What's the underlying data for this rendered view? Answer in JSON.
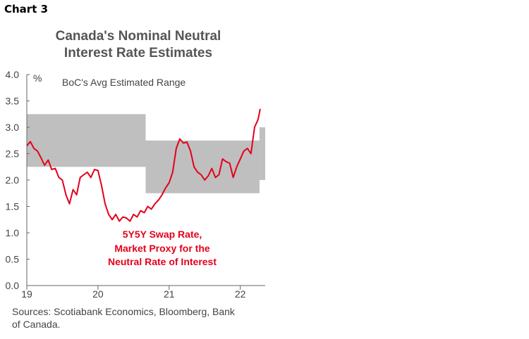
{
  "chart_label": "Chart 3",
  "chart_data": {
    "type": "line",
    "title": "Canada's Nominal Neutral Interest Rate Estimates",
    "title_lines": [
      "Canada's Nominal Neutral",
      "Interest Rate Estimates"
    ],
    "ylabel": "%",
    "xlabel": "",
    "ylim": [
      0,
      4
    ],
    "xlim": [
      19,
      22.35
    ],
    "y_ticks": [
      0.0,
      0.5,
      1.0,
      1.5,
      2.0,
      2.5,
      3.0,
      3.5,
      4.0
    ],
    "y_tick_labels": [
      "0.0",
      "0.5",
      "1.0",
      "1.5",
      "2.0",
      "2.5",
      "3.0",
      "3.5",
      "4.0"
    ],
    "x_ticks": [
      19,
      20,
      21,
      22
    ],
    "x_tick_labels": [
      "19",
      "20",
      "21",
      "22"
    ],
    "grid": false,
    "range_band": {
      "name": "BoC's Avg Estimated Range",
      "color": "#bfbfbf",
      "segments": [
        {
          "x_start": 19.0,
          "x_end": 20.67,
          "low": 2.25,
          "high": 3.25
        },
        {
          "x_start": 20.67,
          "x_end": 22.27,
          "low": 1.75,
          "high": 2.75
        },
        {
          "x_start": 22.27,
          "x_end": 22.35,
          "low": 2.0,
          "high": 3.0
        }
      ]
    },
    "series": [
      {
        "name": "5Y5Y Swap Rate, Market Proxy for the Neutral Rate of Interest",
        "color": "#e3001b",
        "x": [
          19.0,
          19.05,
          19.1,
          19.15,
          19.2,
          19.25,
          19.3,
          19.35,
          19.4,
          19.45,
          19.5,
          19.55,
          19.6,
          19.65,
          19.7,
          19.75,
          19.8,
          19.85,
          19.9,
          19.95,
          20.0,
          20.05,
          20.1,
          20.15,
          20.2,
          20.25,
          20.3,
          20.35,
          20.4,
          20.45,
          20.5,
          20.55,
          20.6,
          20.65,
          20.7,
          20.75,
          20.8,
          20.85,
          20.9,
          20.95,
          21.0,
          21.05,
          21.1,
          21.15,
          21.2,
          21.25,
          21.3,
          21.35,
          21.4,
          21.45,
          21.5,
          21.55,
          21.6,
          21.65,
          21.7,
          21.75,
          21.8,
          21.85,
          21.9,
          21.95,
          22.0,
          22.05,
          22.1,
          22.15,
          22.2,
          22.25,
          22.28
        ],
        "values": [
          2.65,
          2.73,
          2.6,
          2.55,
          2.42,
          2.28,
          2.38,
          2.2,
          2.22,
          2.05,
          2.0,
          1.72,
          1.55,
          1.82,
          1.72,
          2.05,
          2.1,
          2.15,
          2.05,
          2.2,
          2.18,
          1.9,
          1.55,
          1.35,
          1.25,
          1.35,
          1.22,
          1.3,
          1.28,
          1.22,
          1.35,
          1.3,
          1.42,
          1.38,
          1.5,
          1.45,
          1.55,
          1.62,
          1.72,
          1.85,
          1.95,
          2.15,
          2.6,
          2.78,
          2.7,
          2.72,
          2.55,
          2.25,
          2.15,
          2.1,
          2.0,
          2.08,
          2.22,
          2.05,
          2.1,
          2.4,
          2.35,
          2.32,
          2.05,
          2.25,
          2.4,
          2.55,
          2.6,
          2.5,
          3.0,
          3.15,
          3.35
        ]
      }
    ],
    "annotations": [
      {
        "text": "BoC's Avg Estimated Range",
        "color": "#444444"
      },
      {
        "text": "5Y5Y Swap Rate,",
        "color": "#e3001b"
      },
      {
        "text": "Market Proxy for the",
        "color": "#e3001b"
      },
      {
        "text": "Neutral Rate of Interest",
        "color": "#e3001b"
      }
    ]
  },
  "sources": [
    "Sources: Scotiabank Economics, Bloomberg, Bank",
    "of Canada."
  ]
}
